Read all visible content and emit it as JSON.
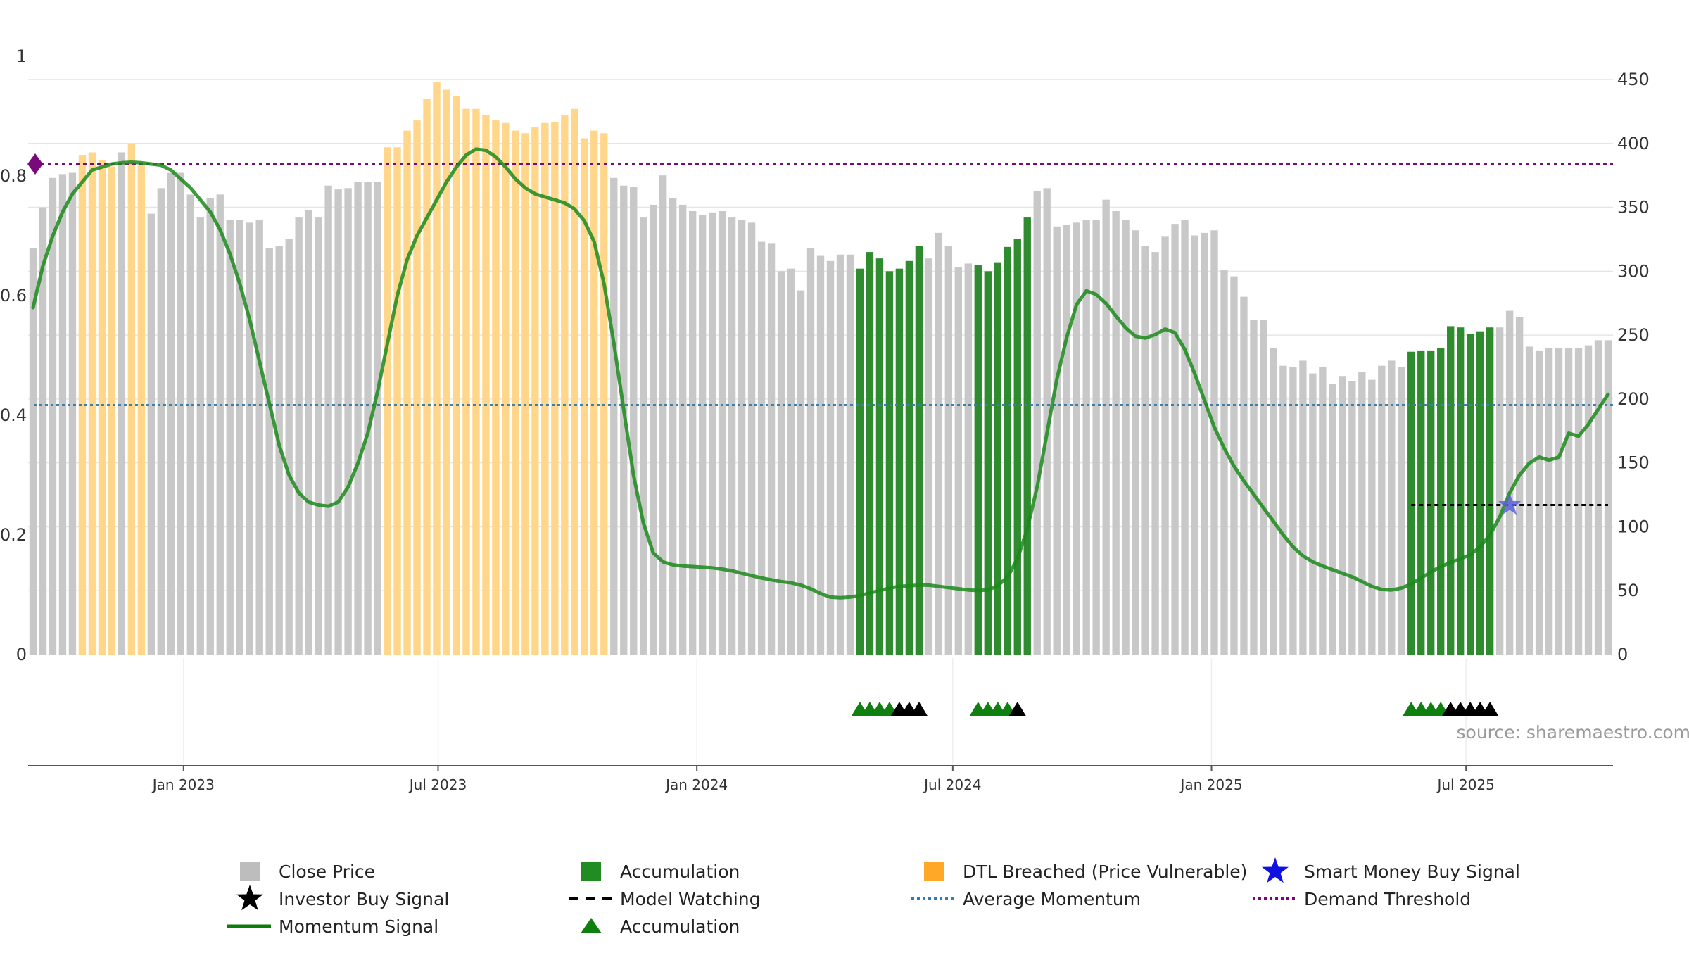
{
  "chart_data": {
    "type": "bar",
    "title": "",
    "source": "source: sharemaestro.com",
    "x_start": "2022-09-16",
    "bar_interval_days": 7,
    "x_ticks": [
      {
        "date": "2023-01-01",
        "label": "Jan 2023"
      },
      {
        "date": "2023-07-01",
        "label": "Jul 2023"
      },
      {
        "date": "2024-01-01",
        "label": "Jan 2024"
      },
      {
        "date": "2024-07-01",
        "label": "Jul 2024"
      },
      {
        "date": "2025-01-01",
        "label": "Jan 2025"
      },
      {
        "date": "2025-07-01",
        "label": "Jul 2025"
      }
    ],
    "left_axis": {
      "min": 0,
      "max": 1,
      "ticks": [
        0,
        0.2,
        0.4,
        0.6,
        0.8,
        1
      ],
      "tick_labels": [
        "0",
        "0.2",
        "0.4",
        "0.6",
        "0.8",
        "1"
      ]
    },
    "right_axis": {
      "min": 0,
      "max": 450,
      "ticks": [
        0,
        50,
        100,
        150,
        200,
        250,
        300,
        350,
        400,
        450
      ],
      "tick_labels": [
        "0",
        "50",
        "100",
        "150",
        "200",
        "250",
        "300",
        "350",
        "400",
        "450"
      ]
    },
    "close_price": [
      318,
      350,
      373,
      376,
      377,
      391,
      393,
      387,
      382,
      393,
      400,
      383,
      345,
      365,
      377,
      377,
      360,
      342,
      357,
      360,
      340,
      340,
      338,
      340,
      318,
      320,
      325,
      342,
      348,
      342,
      367,
      364,
      365,
      370,
      370,
      370,
      397,
      397,
      410,
      418,
      435,
      448,
      442,
      437,
      427,
      427,
      422,
      418,
      416,
      410,
      408,
      413,
      416,
      417,
      422,
      427,
      404,
      410,
      408,
      373,
      367,
      366,
      342,
      352,
      375,
      357,
      352,
      347,
      344,
      346,
      347,
      342,
      340,
      338,
      323,
      322,
      300,
      302,
      285,
      318,
      312,
      308,
      313,
      313,
      302,
      315,
      310,
      300,
      302,
      308,
      320,
      310,
      330,
      320,
      303,
      306,
      305,
      300,
      307,
      319,
      325,
      342,
      363,
      365,
      335,
      336,
      338,
      340,
      340,
      356,
      347,
      340,
      332,
      320,
      315,
      327,
      337,
      340,
      328,
      330,
      332,
      301,
      296,
      280,
      262,
      262,
      240,
      226,
      225,
      230,
      220,
      225,
      212,
      218,
      214,
      221,
      215,
      226,
      230,
      225,
      237,
      238,
      238,
      240,
      257,
      256,
      251,
      253,
      256,
      256,
      269,
      264,
      241,
      238,
      240,
      240,
      240,
      240,
      242,
      246,
      246
    ],
    "bar_category": [
      "g",
      "g",
      "g",
      "g",
      "g",
      "d",
      "d",
      "d",
      "d",
      "g",
      "d",
      "d",
      "g",
      "g",
      "g",
      "g",
      "g",
      "g",
      "g",
      "g",
      "g",
      "g",
      "g",
      "g",
      "g",
      "g",
      "g",
      "g",
      "g",
      "g",
      "g",
      "g",
      "g",
      "g",
      "g",
      "g",
      "d",
      "d",
      "d",
      "d",
      "d",
      "d",
      "d",
      "d",
      "d",
      "d",
      "d",
      "d",
      "d",
      "d",
      "d",
      "d",
      "d",
      "d",
      "d",
      "d",
      "d",
      "d",
      "d",
      "g",
      "g",
      "g",
      "g",
      "g",
      "g",
      "g",
      "g",
      "g",
      "g",
      "g",
      "g",
      "g",
      "g",
      "g",
      "g",
      "g",
      "g",
      "g",
      "g",
      "g",
      "g",
      "g",
      "g",
      "g",
      "a",
      "a",
      "a",
      "a",
      "a",
      "a",
      "a",
      "g",
      "g",
      "g",
      "g",
      "g",
      "a",
      "a",
      "a",
      "a",
      "a",
      "a",
      "g",
      "g",
      "g",
      "g",
      "g",
      "g",
      "g",
      "g",
      "g",
      "g",
      "g",
      "g",
      "g",
      "g",
      "g",
      "g",
      "g",
      "g",
      "g",
      "g",
      "g",
      "g",
      "g",
      "g",
      "g",
      "g",
      "g",
      "g",
      "g",
      "g",
      "g",
      "g",
      "g",
      "g",
      "g",
      "g",
      "g",
      "g",
      "a",
      "a",
      "a",
      "a",
      "a",
      "a",
      "a",
      "a",
      "a",
      "g",
      "g",
      "g",
      "g",
      "g",
      "g",
      "g",
      "g",
      "g",
      "g",
      "g",
      "g"
    ],
    "momentum": [
      0.58,
      0.65,
      0.7,
      0.74,
      0.77,
      0.79,
      0.81,
      0.815,
      0.82,
      0.822,
      0.823,
      0.822,
      0.82,
      0.818,
      0.81,
      0.795,
      0.78,
      0.76,
      0.74,
      0.71,
      0.67,
      0.62,
      0.56,
      0.49,
      0.42,
      0.35,
      0.3,
      0.27,
      0.255,
      0.25,
      0.248,
      0.255,
      0.28,
      0.32,
      0.37,
      0.44,
      0.52,
      0.6,
      0.66,
      0.7,
      0.73,
      0.76,
      0.79,
      0.815,
      0.835,
      0.845,
      0.843,
      0.832,
      0.815,
      0.795,
      0.78,
      0.77,
      0.765,
      0.76,
      0.755,
      0.745,
      0.725,
      0.69,
      0.62,
      0.52,
      0.41,
      0.3,
      0.22,
      0.17,
      0.155,
      0.15,
      0.148,
      0.147,
      0.146,
      0.145,
      0.143,
      0.14,
      0.136,
      0.132,
      0.128,
      0.125,
      0.122,
      0.12,
      0.116,
      0.11,
      0.102,
      0.096,
      0.095,
      0.096,
      0.099,
      0.103,
      0.107,
      0.111,
      0.114,
      0.115,
      0.116,
      0.116,
      0.114,
      0.112,
      0.11,
      0.108,
      0.107,
      0.108,
      0.115,
      0.13,
      0.16,
      0.21,
      0.28,
      0.37,
      0.46,
      0.53,
      0.585,
      0.608,
      0.602,
      0.587,
      0.566,
      0.546,
      0.532,
      0.529,
      0.535,
      0.544,
      0.538,
      0.51,
      0.47,
      0.425,
      0.38,
      0.345,
      0.315,
      0.29,
      0.268,
      0.245,
      0.223,
      0.2,
      0.18,
      0.165,
      0.155,
      0.148,
      0.142,
      0.136,
      0.13,
      0.122,
      0.114,
      0.109,
      0.108,
      0.111,
      0.118,
      0.128,
      0.138,
      0.147,
      0.154,
      0.16,
      0.167,
      0.18,
      0.2,
      0.23,
      0.27,
      0.3,
      0.32,
      0.33,
      0.325,
      0.33,
      0.37,
      0.365,
      0.385,
      0.41,
      0.435
    ],
    "demand_threshold": 0.82,
    "average_momentum": 0.417,
    "model_watching": {
      "value": 0.25,
      "from_index": 140,
      "to_index": 160
    },
    "smart_money_signal": {
      "index": 150,
      "value": 0.25
    },
    "signal_markers": [
      {
        "index": 84,
        "kind": "accumulation"
      },
      {
        "index": 85,
        "kind": "accumulation"
      },
      {
        "index": 86,
        "kind": "accumulation"
      },
      {
        "index": 87,
        "kind": "accumulation"
      },
      {
        "index": 88,
        "kind": "investor"
      },
      {
        "index": 89,
        "kind": "investor"
      },
      {
        "index": 90,
        "kind": "investor"
      },
      {
        "index": 96,
        "kind": "accumulation"
      },
      {
        "index": 97,
        "kind": "accumulation"
      },
      {
        "index": 98,
        "kind": "accumulation"
      },
      {
        "index": 99,
        "kind": "accumulation"
      },
      {
        "index": 100,
        "kind": "investor"
      },
      {
        "index": 140,
        "kind": "accumulation"
      },
      {
        "index": 141,
        "kind": "accumulation"
      },
      {
        "index": 142,
        "kind": "accumulation"
      },
      {
        "index": 143,
        "kind": "accumulation"
      },
      {
        "index": 144,
        "kind": "investor"
      },
      {
        "index": 145,
        "kind": "investor"
      },
      {
        "index": 146,
        "kind": "investor"
      },
      {
        "index": 147,
        "kind": "investor"
      },
      {
        "index": 148,
        "kind": "investor"
      }
    ],
    "legend": [
      {
        "key": "close",
        "label": "Close Price",
        "symbol": "square",
        "color": "#bdbdbd"
      },
      {
        "key": "accum_bar",
        "label": "Accumulation",
        "symbol": "square",
        "color": "#228b22"
      },
      {
        "key": "dtl",
        "label": "DTL Breached (Price Vulnerable)",
        "symbol": "square",
        "color": "#ffa726"
      },
      {
        "key": "smart",
        "label": "Smart Money Buy Signal",
        "symbol": "star",
        "color": "#1010e0"
      },
      {
        "key": "investor",
        "label": "Investor Buy Signal",
        "symbol": "star",
        "color": "#000000"
      },
      {
        "key": "watching",
        "label": "Model Watching",
        "symbol": "dash",
        "color": "#000000"
      },
      {
        "key": "avgmom",
        "label": "Average Momentum",
        "symbol": "dot",
        "color": "#2a7fb8"
      },
      {
        "key": "demand",
        "label": "Demand Threshold",
        "symbol": "dot",
        "color": "#800080"
      },
      {
        "key": "momentum",
        "label": "Momentum Signal",
        "symbol": "line",
        "color": "#0b7d0b"
      },
      {
        "key": "accum_tri",
        "label": "Accumulation",
        "symbol": "triangle",
        "color": "#0f7f0f"
      }
    ],
    "colors": {
      "close": "#c8c8c8",
      "accumulation": "#2e8b2e",
      "dtl": "#ffd68a",
      "momentum": "#1b8a1b",
      "demand": "#7a0a7a",
      "average": "#3d7fa6",
      "investor": "#000000",
      "triangle": "#0f7f0f",
      "smart": "#5a62d8",
      "grid": "#e6e6e6",
      "axis": "#333333",
      "source": "#9a9a9a"
    }
  }
}
